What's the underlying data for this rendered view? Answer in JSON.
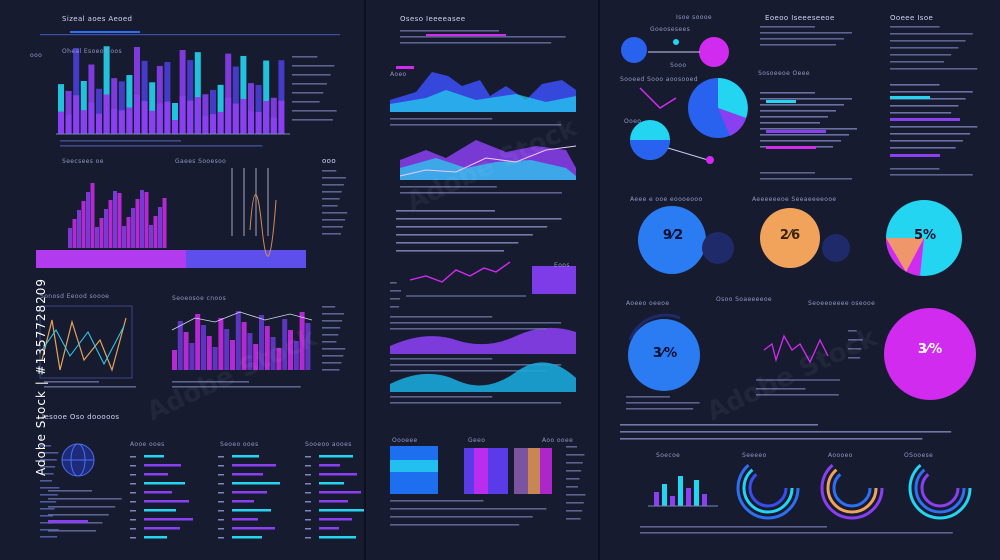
{
  "panel1": {
    "title_top": "Sizeal aoes Aeoed",
    "chart1_title": "Oheal Esoeod oos",
    "label_ooo": "ooo",
    "heading_left_mid": "Seecsees oe",
    "heading_mid": "Gaees Sooesoo",
    "label_right_mid": "ooo",
    "heading_section3": "Sonosd Eeood soooe",
    "heading_section3b": "Seoeosoe cnoos",
    "heading_bottom": "Iesooe Oso dooooos",
    "heading_bottom_b": "Aooe ooes",
    "heading_bottom_c": "Seoeo ooes",
    "heading_bottom_d": "Sooeoo aooes",
    "stock_id": "Adobe Stock | #1357728209"
  },
  "panel2": {
    "title_top": "Oseso Ieeeeasee",
    "tag": "Aoeo",
    "heading_2": "Oooeee",
    "heading_3": "Geeo",
    "heading_4": "Aoo ooee",
    "heading_5": "Eoos"
  },
  "panel3": {
    "title_left": "Isoe soooe",
    "title_mid": "Eoeoo Iseeeseeoe",
    "title_right": "Ooeee Isoe",
    "label_a": "Goeosesees",
    "label_b": "Sooo",
    "label_c": "Sooeed Sooo aoosooed",
    "label_d": "Sosoeeoe Oeee",
    "label_e": "Ooeo",
    "heading_row2_left": "Aeee e ooe eoooeooo",
    "heading_row2_mid": "Aeeeeeeoe Seeaeeeeooe",
    "heading_row3_left": "Aoeeo oeeoe",
    "heading_row3_mid": "Osoo Soaeeeeoe",
    "heading_row3_right": "Seoeeoeeee oseooe",
    "bottom_heads": [
      "Soecoe",
      "Seeeeo",
      "Aoooeo",
      "OSooese"
    ],
    "donut1_pct": "9⁄2",
    "donut2_pct": "2⁄6",
    "donut3_pct": "5%",
    "donut4_pct": "3⁄%",
    "donut5_pct": "3⁄%"
  },
  "colors": {
    "bg": "#171b30",
    "blue": "#2f6ff2",
    "cyan": "#23d5f1",
    "purple": "#8a3ff0",
    "magenta": "#d12bf0",
    "orange": "#f2a35b"
  }
}
